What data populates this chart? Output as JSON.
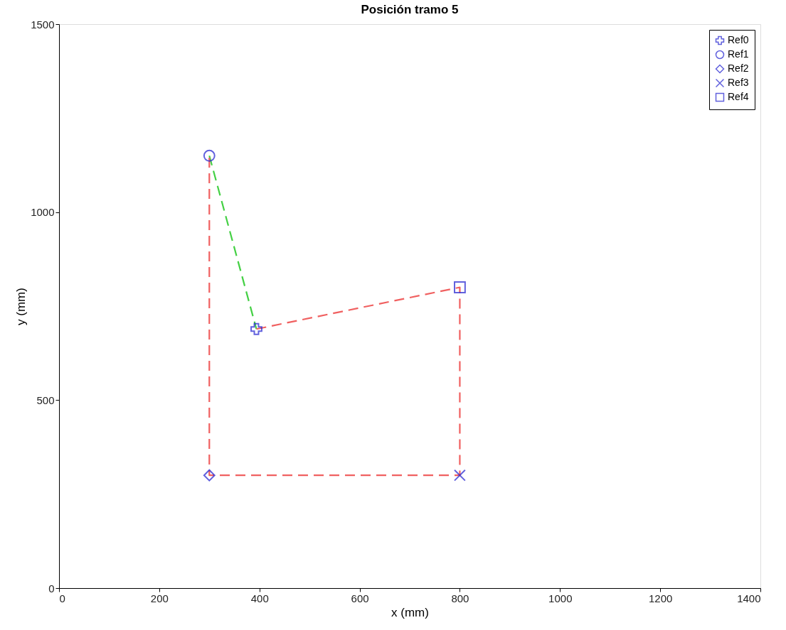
{
  "chart_data": {
    "type": "scatter",
    "title": "Posición tramo 5",
    "xlabel": "x (mm)",
    "ylabel": "y (mm)",
    "xlim": [
      0,
      1400
    ],
    "xticks": [
      0,
      200,
      400,
      600,
      800,
      1000,
      1200,
      1400
    ],
    "ylim": [
      0,
      1500
    ],
    "yticks": [
      0,
      500,
      1000,
      1500
    ],
    "grid": false,
    "legend": "top right",
    "series": [
      {
        "name": "Ref0",
        "color": "#1f1fd0",
        "marker": "cross",
        "x": [
          394
        ],
        "values": [
          689
        ]
      },
      {
        "name": "Ref1",
        "color": "#1f1fd0",
        "marker": "circle",
        "x": [
          300
        ],
        "values": [
          1150
        ]
      },
      {
        "name": "Ref2",
        "color": "#1f1fd0",
        "marker": "diamond",
        "x": [
          300
        ],
        "values": [
          300
        ]
      },
      {
        "name": "Ref3",
        "color": "#1f1fd0",
        "marker": "x",
        "x": [
          800
        ],
        "values": [
          300
        ]
      },
      {
        "name": "Ref4",
        "color": "#1f1fd0",
        "marker": "square",
        "x": [
          800
        ],
        "values": [
          800
        ]
      },
      {
        "type": "line",
        "color": "#44d044",
        "line_style": "dashed",
        "marker": "none",
        "x": [
          300,
          394
        ],
        "values": [
          1150,
          689
        ]
      },
      {
        "type": "line",
        "color": "#f06060",
        "line_style": "dashed",
        "marker": "none",
        "x": [
          394,
          800,
          800,
          300,
          300
        ],
        "values": [
          689,
          800,
          300,
          300,
          1150
        ]
      }
    ]
  }
}
